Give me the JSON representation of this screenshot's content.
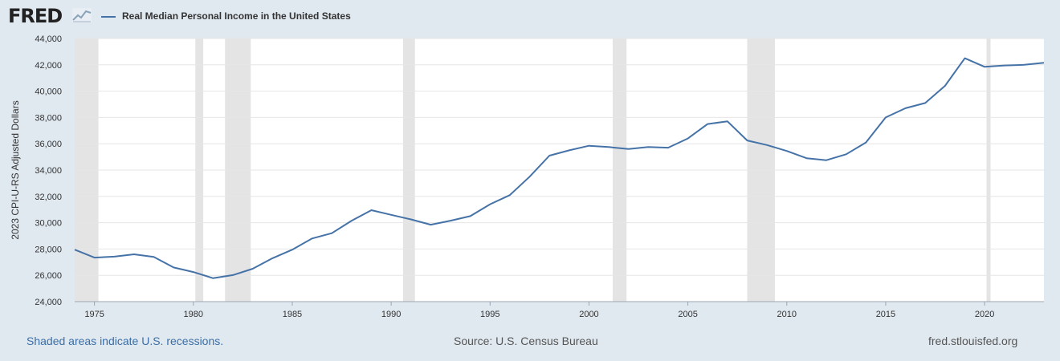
{
  "logo": {
    "text": "FRED",
    "icon": "line-chart-icon"
  },
  "footer": {
    "note": "Shaded areas indicate U.S. recessions.",
    "source": "Source: U.S. Census Bureau",
    "site": "fred.stlouisfed.org"
  },
  "chart_data": {
    "type": "line",
    "title": "",
    "xlabel": "",
    "ylabel": "2023 CPI-U-RS Adjusted Dollars",
    "xlim": [
      1974,
      2023
    ],
    "ylim": [
      24000,
      44000
    ],
    "grid": true,
    "legend_position": "top-left",
    "line_color": "#4572a7",
    "recession_color": "#e4e4e4",
    "y_ticks": [
      24000,
      26000,
      28000,
      30000,
      32000,
      34000,
      36000,
      38000,
      40000,
      42000,
      44000
    ],
    "y_tick_labels": [
      "24,000",
      "26,000",
      "28,000",
      "30,000",
      "32,000",
      "34,000",
      "36,000",
      "38,000",
      "40,000",
      "42,000",
      "44,000"
    ],
    "x_ticks": [
      1975,
      1980,
      1985,
      1990,
      1995,
      2000,
      2005,
      2010,
      2015,
      2020
    ],
    "x_tick_labels": [
      "1975",
      "1980",
      "1985",
      "1990",
      "1995",
      "2000",
      "2005",
      "2010",
      "2015",
      "2020"
    ],
    "recessions": [
      {
        "start": 1974.0,
        "end": 1975.2
      },
      {
        "start": 1980.1,
        "end": 1980.5
      },
      {
        "start": 1981.6,
        "end": 1982.9
      },
      {
        "start": 1990.6,
        "end": 1991.2
      },
      {
        "start": 2001.2,
        "end": 2001.9
      },
      {
        "start": 2008.0,
        "end": 2009.4
      },
      {
        "start": 2020.1,
        "end": 2020.3
      }
    ],
    "series": [
      {
        "name": "Real Median Personal Income in the United States",
        "x": [
          1974,
          1975,
          1976,
          1977,
          1978,
          1979,
          1980,
          1981,
          1982,
          1983,
          1984,
          1985,
          1986,
          1987,
          1988,
          1989,
          1990,
          1991,
          1992,
          1993,
          1994,
          1995,
          1996,
          1997,
          1998,
          1999,
          2000,
          2001,
          2002,
          2003,
          2004,
          2005,
          2006,
          2007,
          2008,
          2009,
          2010,
          2011,
          2012,
          2013,
          2014,
          2015,
          2016,
          2017,
          2018,
          2019,
          2020,
          2021,
          2022,
          2023
        ],
        "values": [
          27950,
          27350,
          27420,
          27600,
          27400,
          26600,
          26250,
          25780,
          26020,
          26500,
          27300,
          27950,
          28800,
          29200,
          30150,
          30950,
          30600,
          30250,
          29850,
          30150,
          30500,
          31400,
          32100,
          33500,
          35100,
          35500,
          35850,
          35750,
          35600,
          35750,
          35700,
          36400,
          37500,
          37700,
          36250,
          35900,
          35450,
          34900,
          34750,
          35200,
          36100,
          38000,
          38700,
          39100,
          40400,
          42500,
          41850,
          41950,
          42000,
          42150
        ]
      }
    ]
  }
}
